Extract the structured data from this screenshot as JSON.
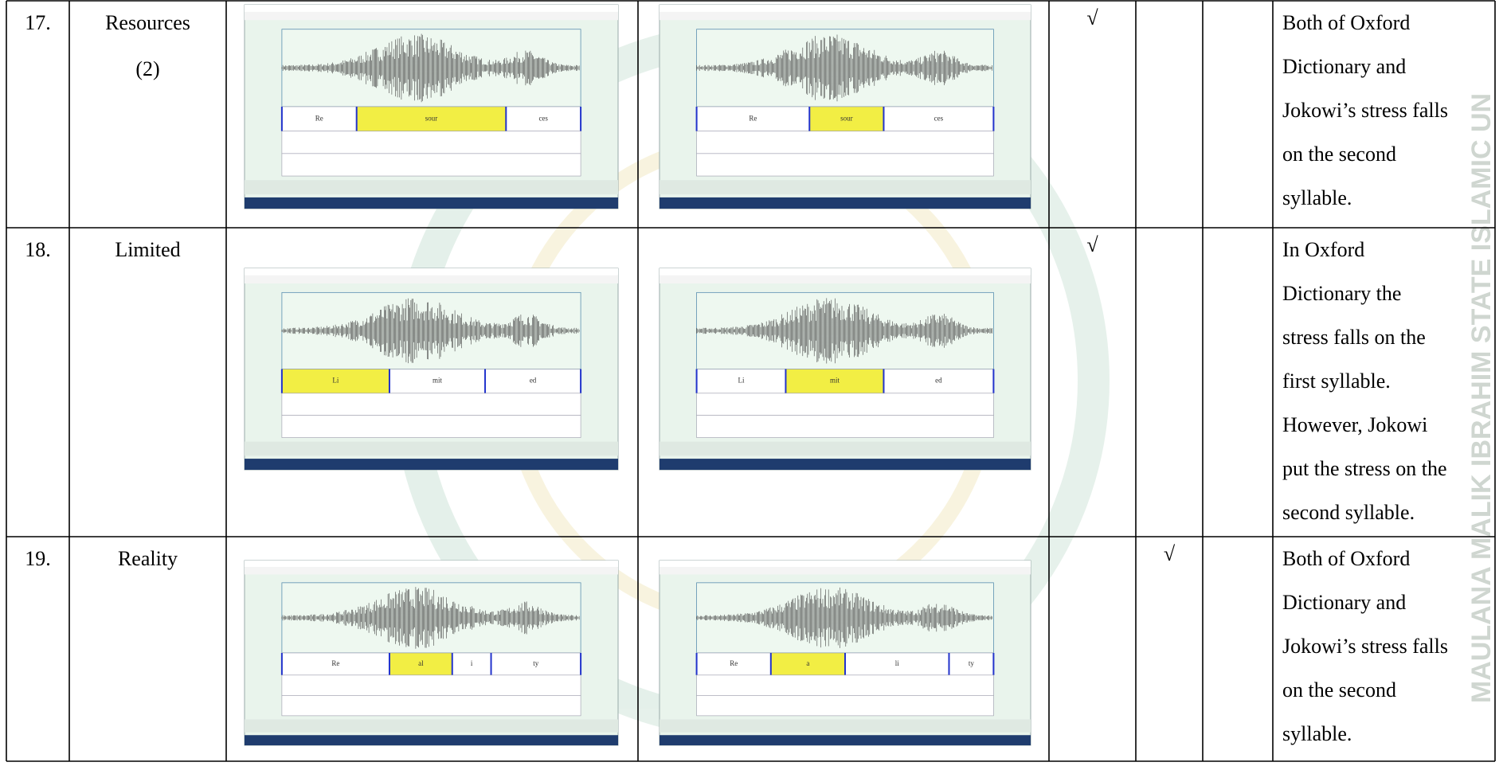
{
  "watermark": "MAULANA MALIK IBRAHIM STATE ISLAMIC UN",
  "table": {
    "rows": [
      {
        "number": "17.",
        "word": "Resources",
        "word_note": "(2)",
        "check_1": "√",
        "left_syllables": [
          "Re",
          "sour",
          "ces"
        ],
        "right_syllables": [
          "Re",
          "sour",
          "ces"
        ],
        "explanation": [
          "Both of Oxford",
          "Dictionary and",
          "Jokowi’s stress falls",
          "on the second",
          "syllable."
        ]
      },
      {
        "number": "18.",
        "word": "Limited",
        "check_1": "√",
        "left_syllables": [
          "Li",
          "mit",
          "ed"
        ],
        "right_syllables": [
          "Li",
          "mit",
          "ed"
        ],
        "explanation": [
          "In Oxford",
          "Dictionary the",
          "stress falls on the",
          "first syllable.",
          "However, Jokowi",
          "put the stress on the",
          "second syllable."
        ]
      },
      {
        "number": "19.",
        "word": "Reality",
        "check_2": "√",
        "left_syllables": [
          "Re",
          "al",
          "i",
          "ty"
        ],
        "right_syllables": [
          "Re",
          "a",
          "li",
          "ty"
        ],
        "explanation": [
          "Both of Oxford",
          "Dictionary and",
          "Jokowi’s stress falls",
          "on the second",
          "syllable."
        ]
      }
    ]
  }
}
